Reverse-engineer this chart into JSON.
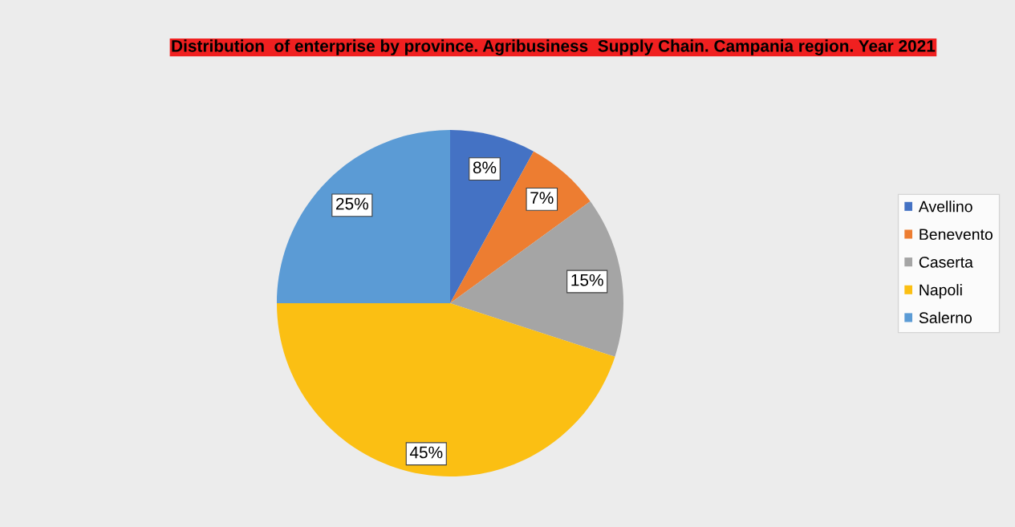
{
  "chart_data": {
    "type": "pie",
    "title": "Distribution  of enterprise by province. Agribusiness  Supply Chain. Campania region. Year 2021",
    "categories": [
      "Avellino",
      "Benevento",
      "Caserta",
      "Napoli",
      "Salerno"
    ],
    "values": [
      8,
      7,
      15,
      45,
      25
    ],
    "colors": [
      "#4472c4",
      "#ed7d31",
      "#a5a5a5",
      "#fbbf13",
      "#5b9bd5"
    ],
    "value_labels": [
      "8%",
      "7%",
      "15%",
      "45%",
      "25%"
    ],
    "legend": "right"
  }
}
